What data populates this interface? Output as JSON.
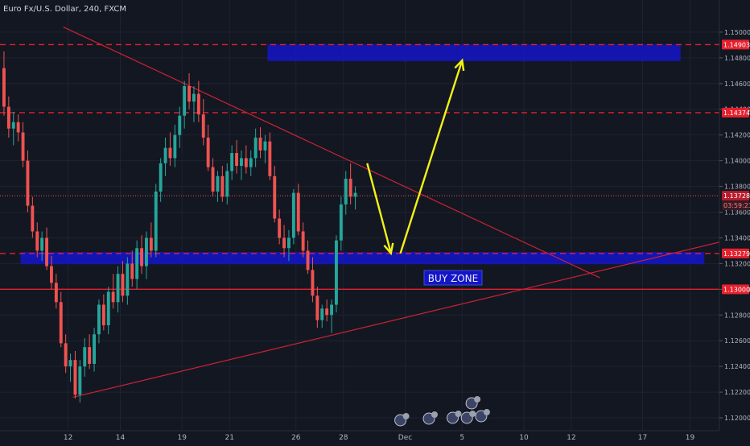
{
  "header": {
    "symbol_title": "Euro Fx/U.S. Dollar, 240, FXCM"
  },
  "buy_zone_label": "BUY ZONE",
  "colors": {
    "background": "#131722",
    "grid": "#1f2330",
    "axis_text": "#b2b5be",
    "up": "#26a69a",
    "down": "#ef5350",
    "resistance_line": "#e5202d",
    "zone_fill": "#1515c8",
    "arrow": "#f2f216",
    "trend_line": "#cc2233",
    "price_badge": "#e5202d"
  },
  "chart_data": {
    "type": "candlestick",
    "instrument": "Euro Fx/U.S. Dollar",
    "timeframe": "240",
    "source": "FXCM",
    "ylim": [
      1.119,
      1.1525
    ],
    "x_tick_labels": [
      {
        "label": "12",
        "bar": 14
      },
      {
        "label": "14",
        "bar": 25
      },
      {
        "label": "19",
        "bar": 38
      },
      {
        "label": "21",
        "bar": 48
      },
      {
        "label": "26",
        "bar": 62
      },
      {
        "label": "28",
        "bar": 72
      },
      {
        "label": "Dec",
        "bar": 85
      },
      {
        "label": "5",
        "bar": 97
      },
      {
        "label": "10",
        "bar": 110
      },
      {
        "label": "12",
        "bar": 120
      },
      {
        "label": "17",
        "bar": 135
      },
      {
        "label": "19",
        "bar": 145
      }
    ],
    "y_tick_labels": [
      "1.15000",
      "1.14800",
      "1.14600",
      "1.14400",
      "1.14200",
      "1.14000",
      "1.13800",
      "1.13600",
      "1.13400",
      "1.13200",
      "1.13000",
      "1.12800",
      "1.12600",
      "1.12400",
      "1.12200",
      "1.12000"
    ],
    "y_tick_values": [
      1.15,
      1.148,
      1.146,
      1.144,
      1.142,
      1.14,
      1.138,
      1.136,
      1.134,
      1.132,
      1.13,
      1.128,
      1.126,
      1.124,
      1.122,
      1.12
    ],
    "price_labels": [
      {
        "value": 1.14903,
        "text": "1.14903",
        "style": "resistance"
      },
      {
        "value": 1.14374,
        "text": "1.14374",
        "style": "resistance"
      },
      {
        "value": 1.13728,
        "text": "1.13728",
        "style": "last"
      },
      {
        "value": 1.13279,
        "text": "1.13279",
        "style": "resistance"
      },
      {
        "value": 1.13,
        "text": "1.13000",
        "style": "resistance"
      }
    ],
    "countdown": "03:59:23",
    "horizontal_lines": [
      {
        "value": 1.14903,
        "style": "dashed"
      },
      {
        "value": 1.14374,
        "style": "dashed"
      },
      {
        "value": 1.13279,
        "style": "dashed"
      },
      {
        "value": 1.13,
        "style": "solid"
      },
      {
        "value": 1.13728,
        "style": "dotted"
      }
    ],
    "zones": [
      {
        "name": "target",
        "bar_from": 56,
        "bar_to": 143,
        "y_low": 1.14775,
        "y_high": 1.14905
      },
      {
        "name": "buy",
        "bar_from": 4,
        "bar_to": 148,
        "y_low": 1.13195,
        "y_high": 1.1329
      }
    ],
    "trend_lines": [
      {
        "from": {
          "bar": 13,
          "price": 1.1504
        },
        "to": {
          "bar": 126,
          "price": 1.1309
        }
      },
      {
        "from": {
          "bar": 15,
          "price": 1.1216
        },
        "to": {
          "bar": 155,
          "price": 1.134
        }
      }
    ],
    "arrows": [
      {
        "from": {
          "bar": 77,
          "price": 1.1398
        },
        "to": {
          "bar": 82,
          "price": 1.1328
        }
      },
      {
        "from": {
          "bar": 84,
          "price": 1.1328
        },
        "to": {
          "bar": 97,
          "price": 1.1478
        }
      }
    ],
    "candles": [
      [
        1.1472,
        1.1485,
        1.1435,
        1.1442
      ],
      [
        1.1442,
        1.145,
        1.1418,
        1.1425
      ],
      [
        1.1425,
        1.1438,
        1.1412,
        1.143
      ],
      [
        1.143,
        1.1436,
        1.1415,
        1.1422
      ],
      [
        1.1422,
        1.143,
        1.1395,
        1.14
      ],
      [
        1.14,
        1.1408,
        1.136,
        1.1365
      ],
      [
        1.1365,
        1.1372,
        1.134,
        1.1345
      ],
      [
        1.1345,
        1.1352,
        1.1325,
        1.133
      ],
      [
        1.133,
        1.1345,
        1.1322,
        1.134
      ],
      [
        1.134,
        1.1348,
        1.1315,
        1.1318
      ],
      [
        1.1318,
        1.1326,
        1.13,
        1.1305
      ],
      [
        1.1305,
        1.1312,
        1.1285,
        1.129
      ],
      [
        1.129,
        1.1298,
        1.1255,
        1.1258
      ],
      [
        1.1258,
        1.1265,
        1.1235,
        1.124
      ],
      [
        1.124,
        1.125,
        1.1228,
        1.1245
      ],
      [
        1.1245,
        1.1252,
        1.1215,
        1.1218
      ],
      [
        1.1218,
        1.1245,
        1.1212,
        1.124
      ],
      [
        1.124,
        1.1262,
        1.1232,
        1.1255
      ],
      [
        1.1255,
        1.1265,
        1.1238,
        1.1242
      ],
      [
        1.1242,
        1.127,
        1.1236,
        1.1265
      ],
      [
        1.1265,
        1.1292,
        1.1258,
        1.1288
      ],
      [
        1.1288,
        1.1296,
        1.1268,
        1.1272
      ],
      [
        1.1272,
        1.1302,
        1.1265,
        1.1298
      ],
      [
        1.1298,
        1.1312,
        1.1285,
        1.129
      ],
      [
        1.129,
        1.1318,
        1.1282,
        1.1312
      ],
      [
        1.1312,
        1.1322,
        1.129,
        1.1295
      ],
      [
        1.1295,
        1.1325,
        1.1288,
        1.132
      ],
      [
        1.132,
        1.133,
        1.1302,
        1.1308
      ],
      [
        1.1308,
        1.1338,
        1.13,
        1.1332
      ],
      [
        1.1332,
        1.1342,
        1.1312,
        1.1318
      ],
      [
        1.1318,
        1.1345,
        1.1308,
        1.134
      ],
      [
        1.134,
        1.1352,
        1.1325,
        1.133
      ],
      [
        1.133,
        1.1382,
        1.1325,
        1.1376
      ],
      [
        1.1376,
        1.1402,
        1.1368,
        1.1398
      ],
      [
        1.1398,
        1.1418,
        1.1388,
        1.141
      ],
      [
        1.141,
        1.1422,
        1.1396,
        1.1402
      ],
      [
        1.1402,
        1.1428,
        1.1395,
        1.142
      ],
      [
        1.142,
        1.1442,
        1.141,
        1.1435
      ],
      [
        1.1435,
        1.1462,
        1.1425,
        1.1458
      ],
      [
        1.1458,
        1.1468,
        1.144,
        1.1446
      ],
      [
        1.1446,
        1.1458,
        1.143,
        1.1452
      ],
      [
        1.1452,
        1.1462,
        1.143,
        1.1436
      ],
      [
        1.1436,
        1.1448,
        1.1412,
        1.1418
      ],
      [
        1.1418,
        1.1428,
        1.1392,
        1.1395
      ],
      [
        1.1395,
        1.1402,
        1.1372,
        1.1376
      ],
      [
        1.1376,
        1.1392,
        1.1368,
        1.1388
      ],
      [
        1.1388,
        1.1396,
        1.1368,
        1.1372
      ],
      [
        1.1372,
        1.1398,
        1.1366,
        1.1392
      ],
      [
        1.1392,
        1.1412,
        1.1385,
        1.1406
      ],
      [
        1.1406,
        1.1416,
        1.139,
        1.1396
      ],
      [
        1.1396,
        1.1408,
        1.1385,
        1.1402
      ],
      [
        1.1402,
        1.1412,
        1.139,
        1.1395
      ],
      [
        1.1395,
        1.1408,
        1.1388,
        1.1402
      ],
      [
        1.1402,
        1.1425,
        1.1395,
        1.1418
      ],
      [
        1.1418,
        1.1426,
        1.1402,
        1.1408
      ],
      [
        1.1408,
        1.142,
        1.1398,
        1.1415
      ],
      [
        1.1415,
        1.1422,
        1.1385,
        1.1388
      ],
      [
        1.1388,
        1.1396,
        1.1352,
        1.1355
      ],
      [
        1.1355,
        1.1362,
        1.1335,
        1.134
      ],
      [
        1.134,
        1.135,
        1.1325,
        1.1332
      ],
      [
        1.1332,
        1.1346,
        1.1322,
        1.134
      ],
      [
        1.134,
        1.1378,
        1.1335,
        1.1375
      ],
      [
        1.1375,
        1.1382,
        1.1342,
        1.1345
      ],
      [
        1.1345,
        1.1352,
        1.1325,
        1.133
      ],
      [
        1.133,
        1.1338,
        1.1312,
        1.1315
      ],
      [
        1.1315,
        1.1325,
        1.129,
        1.1295
      ],
      [
        1.1295,
        1.1302,
        1.127,
        1.1276
      ],
      [
        1.1276,
        1.1288,
        1.127,
        1.1285
      ],
      [
        1.1285,
        1.1292,
        1.1275,
        1.128
      ],
      [
        1.128,
        1.1292,
        1.1266,
        1.1288
      ],
      [
        1.1288,
        1.1342,
        1.1282,
        1.1338
      ],
      [
        1.1338,
        1.1372,
        1.133,
        1.1366
      ],
      [
        1.1366,
        1.1392,
        1.1358,
        1.1386
      ],
      [
        1.1386,
        1.1398,
        1.1366,
        1.1372
      ],
      [
        1.1372,
        1.138,
        1.1362,
        1.1375
      ]
    ]
  }
}
